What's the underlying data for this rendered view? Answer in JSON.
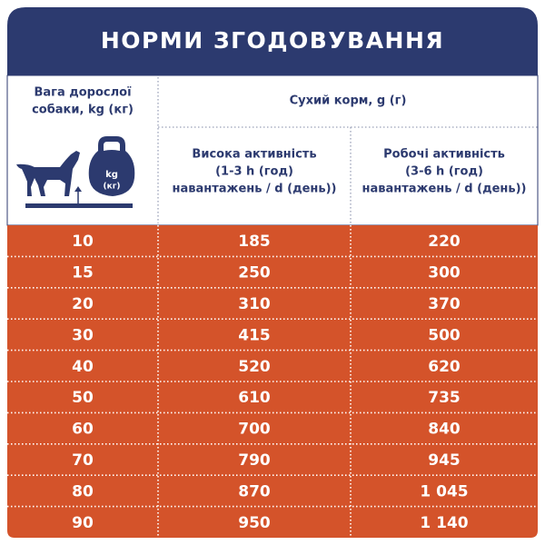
{
  "header": {
    "title": "НОРМИ ЗГОДОВУВАННЯ"
  },
  "table": {
    "weight_header": [
      "Вага дорослої",
      "собаки, kg (кг)"
    ],
    "icon_labels": [
      "kg",
      "(кг)"
    ],
    "group_header": "Сухий корм, g (г)",
    "columns": [
      [
        "Висока активність",
        "(1-3 h (год)",
        "навантажень / d (день))"
      ],
      [
        "Робочі активність",
        "(3-6 h (год)",
        "навантажень / d (день))"
      ]
    ],
    "rows": [
      [
        "10",
        "185",
        "220"
      ],
      [
        "15",
        "250",
        "300"
      ],
      [
        "20",
        "310",
        "370"
      ],
      [
        "30",
        "415",
        "500"
      ],
      [
        "40",
        "520",
        "620"
      ],
      [
        "50",
        "610",
        "735"
      ],
      [
        "60",
        "700",
        "840"
      ],
      [
        "70",
        "790",
        "945"
      ],
      [
        "80",
        "870",
        "1 045"
      ],
      [
        "90",
        "950",
        "1 140"
      ]
    ]
  }
}
